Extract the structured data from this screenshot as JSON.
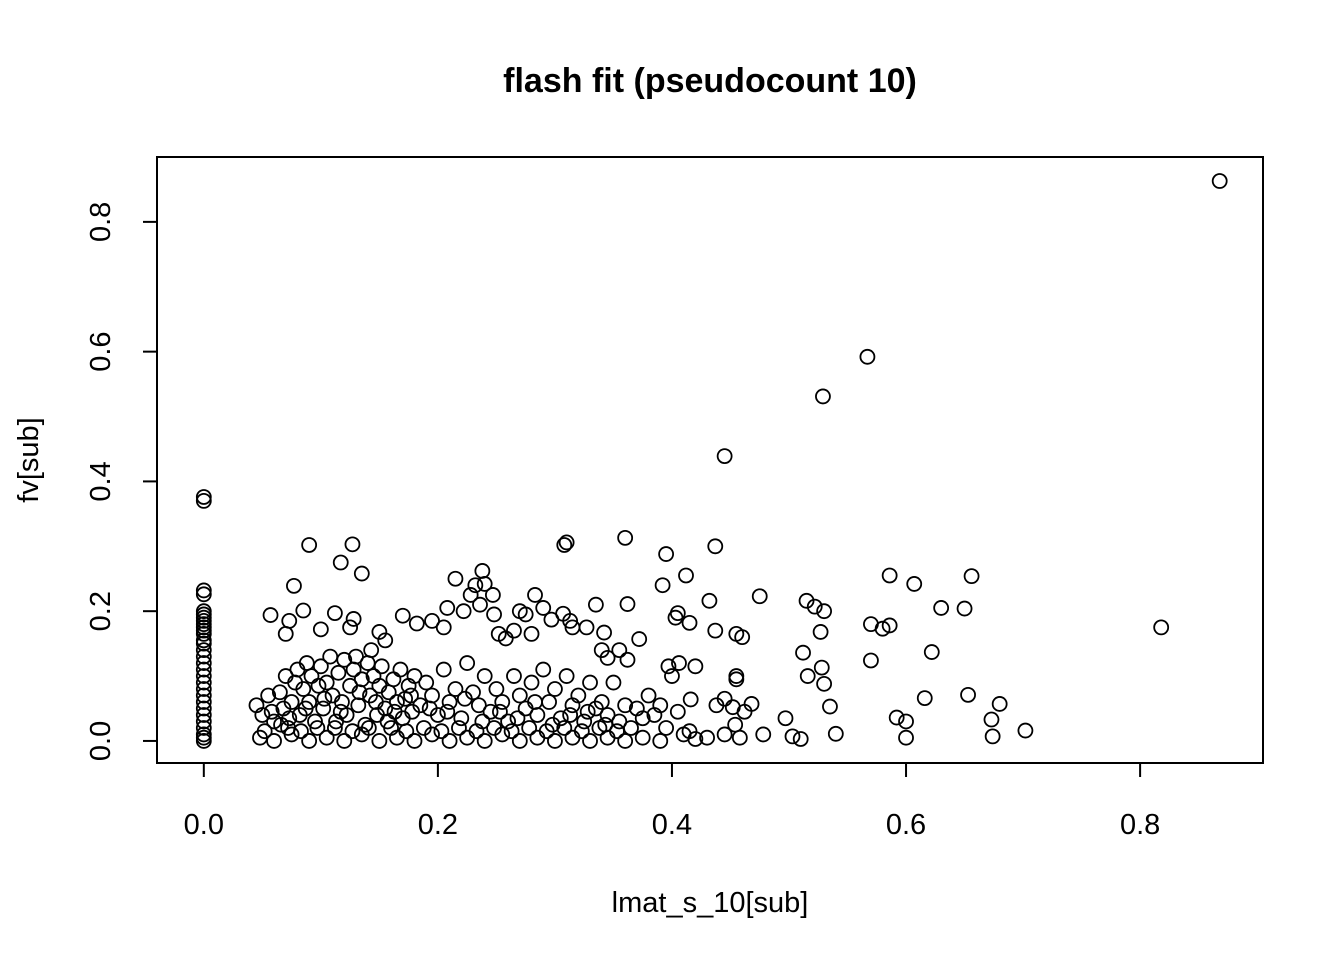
{
  "chart_data": {
    "type": "scatter",
    "title": "flash fit (pseudocount 10)",
    "xlabel": "lmat_s_10[sub]",
    "ylabel": "fv[sub]",
    "xlim": [
      -0.04,
      0.905
    ],
    "ylim": [
      -0.034,
      0.9
    ],
    "x_ticks": [
      0.0,
      0.2,
      0.4,
      0.6,
      0.8
    ],
    "y_ticks": [
      0.0,
      0.2,
      0.4,
      0.6,
      0.8
    ],
    "x_tick_labels": [
      "0.0",
      "0.2",
      "0.4",
      "0.6",
      "0.8"
    ],
    "y_tick_labels": [
      "0.0",
      "0.2",
      "0.4",
      "0.6",
      "0.8"
    ],
    "marker": "open-circle",
    "grid": false,
    "points": [
      [
        0.868,
        0.863
      ],
      [
        0.567,
        0.592
      ],
      [
        0.529,
        0.531
      ],
      [
        0.445,
        0.439
      ],
      [
        0.0,
        0.376
      ],
      [
        0.0,
        0.37
      ],
      [
        0.0,
        0.232
      ],
      [
        0.0,
        0.226
      ],
      [
        0.0,
        0.2
      ],
      [
        0.0,
        0.195
      ],
      [
        0.0,
        0.19
      ],
      [
        0.0,
        0.185
      ],
      [
        0.0,
        0.18
      ],
      [
        0.0,
        0.175
      ],
      [
        0.0,
        0.17
      ],
      [
        0.0,
        0.165
      ],
      [
        0.0,
        0.155
      ],
      [
        0.0,
        0.15
      ],
      [
        0.0,
        0.14
      ],
      [
        0.0,
        0.13
      ],
      [
        0.0,
        0.12
      ],
      [
        0.0,
        0.11
      ],
      [
        0.0,
        0.1
      ],
      [
        0.0,
        0.09
      ],
      [
        0.0,
        0.08
      ],
      [
        0.0,
        0.07
      ],
      [
        0.0,
        0.06
      ],
      [
        0.0,
        0.05
      ],
      [
        0.0,
        0.04
      ],
      [
        0.0,
        0.03
      ],
      [
        0.0,
        0.02
      ],
      [
        0.0,
        0.01
      ],
      [
        0.0,
        0.005
      ],
      [
        0.0,
        0.0
      ],
      [
        0.09,
        0.302
      ],
      [
        0.127,
        0.303
      ],
      [
        0.117,
        0.275
      ],
      [
        0.135,
        0.258
      ],
      [
        0.077,
        0.239
      ],
      [
        0.057,
        0.194
      ],
      [
        0.085,
        0.201
      ],
      [
        0.073,
        0.185
      ],
      [
        0.07,
        0.165
      ],
      [
        0.1,
        0.172
      ],
      [
        0.112,
        0.197
      ],
      [
        0.128,
        0.188
      ],
      [
        0.125,
        0.175
      ],
      [
        0.143,
        0.14
      ],
      [
        0.15,
        0.168
      ],
      [
        0.155,
        0.155
      ],
      [
        0.17,
        0.193
      ],
      [
        0.182,
        0.181
      ],
      [
        0.195,
        0.185
      ],
      [
        0.205,
        0.175
      ],
      [
        0.208,
        0.205
      ],
      [
        0.215,
        0.25
      ],
      [
        0.222,
        0.2
      ],
      [
        0.228,
        0.225
      ],
      [
        0.232,
        0.24
      ],
      [
        0.238,
        0.262
      ],
      [
        0.24,
        0.242
      ],
      [
        0.247,
        0.225
      ],
      [
        0.236,
        0.21
      ],
      [
        0.248,
        0.195
      ],
      [
        0.252,
        0.165
      ],
      [
        0.258,
        0.158
      ],
      [
        0.265,
        0.17
      ],
      [
        0.27,
        0.2
      ],
      [
        0.275,
        0.195
      ],
      [
        0.28,
        0.165
      ],
      [
        0.283,
        0.225
      ],
      [
        0.29,
        0.205
      ],
      [
        0.297,
        0.187
      ],
      [
        0.308,
        0.302
      ],
      [
        0.31,
        0.306
      ],
      [
        0.307,
        0.196
      ],
      [
        0.313,
        0.185
      ],
      [
        0.315,
        0.175
      ],
      [
        0.327,
        0.175
      ],
      [
        0.335,
        0.21
      ],
      [
        0.342,
        0.167
      ],
      [
        0.34,
        0.14
      ],
      [
        0.345,
        0.128
      ],
      [
        0.36,
        0.313
      ],
      [
        0.362,
        0.211
      ],
      [
        0.355,
        0.14
      ],
      [
        0.372,
        0.157
      ],
      [
        0.362,
        0.125
      ],
      [
        0.395,
        0.288
      ],
      [
        0.392,
        0.24
      ],
      [
        0.405,
        0.197
      ],
      [
        0.403,
        0.19
      ],
      [
        0.412,
        0.255
      ],
      [
        0.415,
        0.182
      ],
      [
        0.432,
        0.216
      ],
      [
        0.437,
        0.3
      ],
      [
        0.437,
        0.17
      ],
      [
        0.455,
        0.165
      ],
      [
        0.46,
        0.16
      ],
      [
        0.475,
        0.223
      ],
      [
        0.406,
        0.12
      ],
      [
        0.397,
        0.115
      ],
      [
        0.42,
        0.115
      ],
      [
        0.455,
        0.1
      ],
      [
        0.455,
        0.095
      ],
      [
        0.416,
        0.064
      ],
      [
        0.445,
        0.065
      ],
      [
        0.438,
        0.055
      ],
      [
        0.468,
        0.057
      ],
      [
        0.452,
        0.052
      ],
      [
        0.462,
        0.045
      ],
      [
        0.497,
        0.035
      ],
      [
        0.454,
        0.025
      ],
      [
        0.478,
        0.01
      ],
      [
        0.503,
        0.007
      ],
      [
        0.51,
        0.003
      ],
      [
        0.445,
        0.01
      ],
      [
        0.458,
        0.005
      ],
      [
        0.512,
        0.136
      ],
      [
        0.515,
        0.216
      ],
      [
        0.522,
        0.207
      ],
      [
        0.53,
        0.2
      ],
      [
        0.527,
        0.168
      ],
      [
        0.528,
        0.113
      ],
      [
        0.516,
        0.1
      ],
      [
        0.53,
        0.088
      ],
      [
        0.535,
        0.053
      ],
      [
        0.54,
        0.011
      ],
      [
        0.57,
        0.18
      ],
      [
        0.58,
        0.173
      ],
      [
        0.586,
        0.178
      ],
      [
        0.586,
        0.255
      ],
      [
        0.607,
        0.242
      ],
      [
        0.57,
        0.124
      ],
      [
        0.622,
        0.137
      ],
      [
        0.63,
        0.205
      ],
      [
        0.65,
        0.204
      ],
      [
        0.656,
        0.254
      ],
      [
        0.653,
        0.071
      ],
      [
        0.616,
        0.066
      ],
      [
        0.592,
        0.036
      ],
      [
        0.6,
        0.03
      ],
      [
        0.6,
        0.005
      ],
      [
        0.68,
        0.057
      ],
      [
        0.673,
        0.033
      ],
      [
        0.674,
        0.007
      ],
      [
        0.702,
        0.016
      ],
      [
        0.818,
        0.175
      ],
      [
        0.045,
        0.055
      ],
      [
        0.05,
        0.04
      ],
      [
        0.055,
        0.07
      ],
      [
        0.06,
        0.03
      ],
      [
        0.065,
        0.075
      ],
      [
        0.068,
        0.05
      ],
      [
        0.07,
        0.1
      ],
      [
        0.072,
        0.02
      ],
      [
        0.075,
        0.06
      ],
      [
        0.078,
        0.09
      ],
      [
        0.08,
        0.11
      ],
      [
        0.082,
        0.04
      ],
      [
        0.085,
        0.08
      ],
      [
        0.088,
        0.12
      ],
      [
        0.09,
        0.06
      ],
      [
        0.092,
        0.1
      ],
      [
        0.095,
        0.03
      ],
      [
        0.098,
        0.085
      ],
      [
        0.1,
        0.115
      ],
      [
        0.102,
        0.05
      ],
      [
        0.105,
        0.09
      ],
      [
        0.108,
        0.13
      ],
      [
        0.11,
        0.07
      ],
      [
        0.112,
        0.02
      ],
      [
        0.115,
        0.105
      ],
      [
        0.118,
        0.06
      ],
      [
        0.12,
        0.125
      ],
      [
        0.122,
        0.04
      ],
      [
        0.125,
        0.085
      ],
      [
        0.128,
        0.11
      ],
      [
        0.13,
        0.13
      ],
      [
        0.132,
        0.055
      ],
      [
        0.135,
        0.095
      ],
      [
        0.138,
        0.025
      ],
      [
        0.14,
        0.12
      ],
      [
        0.142,
        0.07
      ],
      [
        0.145,
        0.1
      ],
      [
        0.148,
        0.04
      ],
      [
        0.15,
        0.085
      ],
      [
        0.152,
        0.115
      ],
      [
        0.155,
        0.05
      ],
      [
        0.158,
        0.075
      ],
      [
        0.16,
        0.02
      ],
      [
        0.162,
        0.095
      ],
      [
        0.165,
        0.06
      ],
      [
        0.168,
        0.11
      ],
      [
        0.17,
        0.035
      ],
      [
        0.172,
        0.065
      ],
      [
        0.175,
        0.085
      ],
      [
        0.178,
        0.045
      ],
      [
        0.18,
        0.1
      ],
      [
        0.185,
        0.055
      ],
      [
        0.19,
        0.09
      ],
      [
        0.195,
        0.07
      ],
      [
        0.2,
        0.04
      ],
      [
        0.205,
        0.11
      ],
      [
        0.21,
        0.06
      ],
      [
        0.215,
        0.08
      ],
      [
        0.22,
        0.035
      ],
      [
        0.225,
        0.12
      ],
      [
        0.23,
        0.075
      ],
      [
        0.235,
        0.055
      ],
      [
        0.24,
        0.1
      ],
      [
        0.245,
        0.045
      ],
      [
        0.25,
        0.08
      ],
      [
        0.255,
        0.06
      ],
      [
        0.26,
        0.03
      ],
      [
        0.265,
        0.1
      ],
      [
        0.27,
        0.07
      ],
      [
        0.275,
        0.05
      ],
      [
        0.28,
        0.09
      ],
      [
        0.285,
        0.04
      ],
      [
        0.29,
        0.11
      ],
      [
        0.295,
        0.06
      ],
      [
        0.3,
        0.08
      ],
      [
        0.305,
        0.035
      ],
      [
        0.31,
        0.1
      ],
      [
        0.315,
        0.055
      ],
      [
        0.32,
        0.07
      ],
      [
        0.325,
        0.03
      ],
      [
        0.33,
        0.09
      ],
      [
        0.335,
        0.05
      ],
      [
        0.34,
        0.06
      ],
      [
        0.345,
        0.04
      ],
      [
        0.35,
        0.09
      ],
      [
        0.355,
        0.03
      ],
      [
        0.36,
        0.055
      ],
      [
        0.365,
        0.02
      ],
      [
        0.37,
        0.05
      ],
      [
        0.375,
        0.035
      ],
      [
        0.38,
        0.07
      ],
      [
        0.385,
        0.04
      ],
      [
        0.39,
        0.055
      ],
      [
        0.395,
        0.02
      ],
      [
        0.4,
        0.1
      ],
      [
        0.405,
        0.045
      ],
      [
        0.41,
        0.01
      ],
      [
        0.415,
        0.015
      ],
      [
        0.42,
        0.003
      ],
      [
        0.43,
        0.005
      ],
      [
        0.048,
        0.005
      ],
      [
        0.06,
        0.0
      ],
      [
        0.075,
        0.01
      ],
      [
        0.09,
        0.0
      ],
      [
        0.105,
        0.005
      ],
      [
        0.12,
        0.0
      ],
      [
        0.135,
        0.01
      ],
      [
        0.15,
        0.0
      ],
      [
        0.165,
        0.005
      ],
      [
        0.18,
        0.0
      ],
      [
        0.195,
        0.01
      ],
      [
        0.21,
        0.0
      ],
      [
        0.225,
        0.005
      ],
      [
        0.24,
        0.0
      ],
      [
        0.255,
        0.01
      ],
      [
        0.27,
        0.0
      ],
      [
        0.285,
        0.005
      ],
      [
        0.3,
        0.0
      ],
      [
        0.315,
        0.005
      ],
      [
        0.33,
        0.0
      ],
      [
        0.345,
        0.005
      ],
      [
        0.36,
        0.0
      ],
      [
        0.375,
        0.005
      ],
      [
        0.39,
        0.0
      ],
      [
        0.052,
        0.015
      ],
      [
        0.066,
        0.025
      ],
      [
        0.083,
        0.015
      ],
      [
        0.097,
        0.02
      ],
      [
        0.113,
        0.03
      ],
      [
        0.127,
        0.015
      ],
      [
        0.141,
        0.02
      ],
      [
        0.157,
        0.03
      ],
      [
        0.173,
        0.015
      ],
      [
        0.188,
        0.02
      ],
      [
        0.203,
        0.015
      ],
      [
        0.218,
        0.02
      ],
      [
        0.233,
        0.015
      ],
      [
        0.248,
        0.02
      ],
      [
        0.263,
        0.015
      ],
      [
        0.278,
        0.02
      ],
      [
        0.293,
        0.015
      ],
      [
        0.308,
        0.02
      ],
      [
        0.323,
        0.015
      ],
      [
        0.338,
        0.02
      ],
      [
        0.353,
        0.015
      ],
      [
        0.058,
        0.045
      ],
      [
        0.073,
        0.035
      ],
      [
        0.087,
        0.05
      ],
      [
        0.103,
        0.065
      ],
      [
        0.117,
        0.045
      ],
      [
        0.133,
        0.075
      ],
      [
        0.147,
        0.06
      ],
      [
        0.163,
        0.045
      ],
      [
        0.177,
        0.07
      ],
      [
        0.193,
        0.05
      ],
      [
        0.208,
        0.045
      ],
      [
        0.223,
        0.065
      ],
      [
        0.238,
        0.03
      ],
      [
        0.253,
        0.045
      ],
      [
        0.268,
        0.035
      ],
      [
        0.283,
        0.06
      ],
      [
        0.298,
        0.025
      ],
      [
        0.313,
        0.04
      ],
      [
        0.328,
        0.045
      ],
      [
        0.343,
        0.025
      ]
    ]
  }
}
